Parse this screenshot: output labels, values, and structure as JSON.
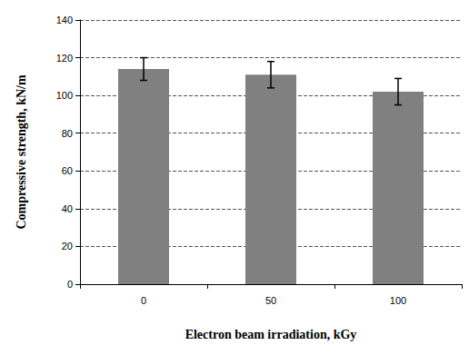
{
  "chart_data": {
    "type": "bar",
    "x_label": "Electron beam irradiation, kGy",
    "y_label": "Compressive strength, kN/m",
    "categories": [
      "0",
      "50",
      "100"
    ],
    "values": [
      114,
      111,
      102
    ],
    "errors": [
      6,
      7,
      7
    ],
    "color": "#808080",
    "ylim": [
      0,
      140
    ],
    "yticks": [
      0,
      20,
      40,
      60,
      80,
      100,
      120,
      140
    ],
    "grid": true
  }
}
